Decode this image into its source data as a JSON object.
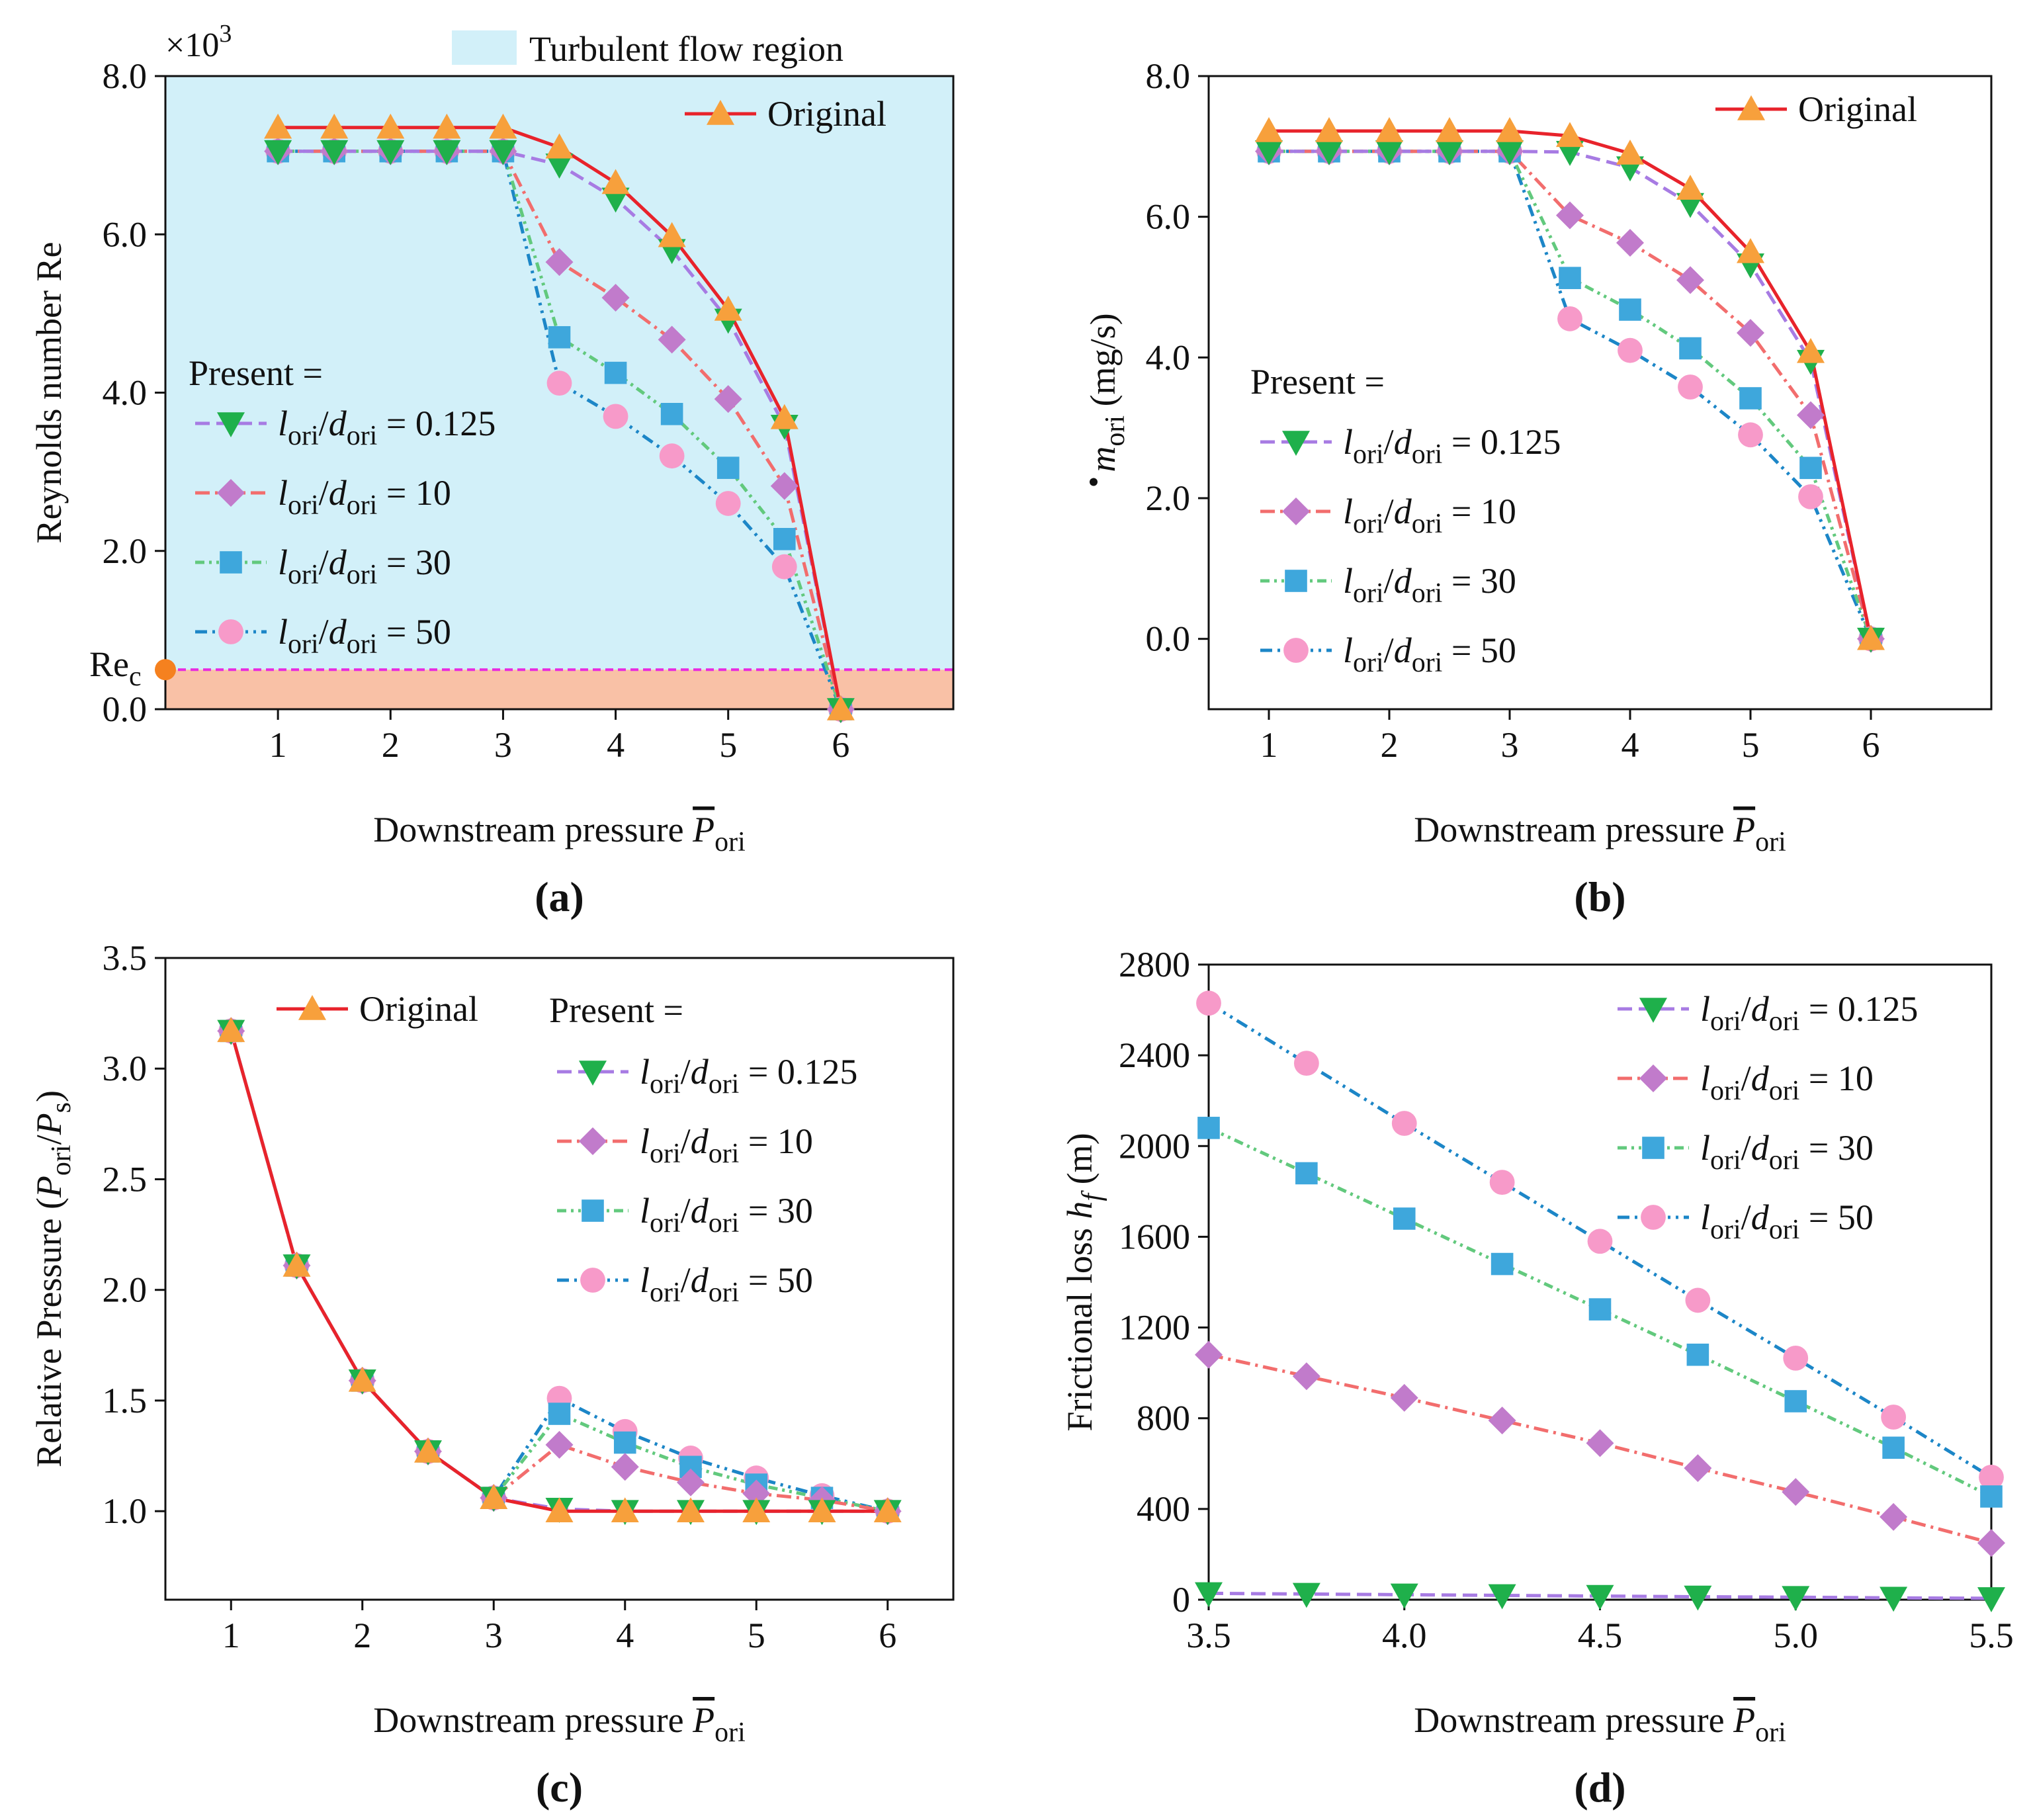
{
  "chart_data": [
    {
      "id": "a",
      "type": "line",
      "panel_label": "(a)",
      "xlabel": "Downstream pressure ",
      "xlabel_symbol": "P",
      "xlabel_sub": "ori",
      "ylabel": "Reynolds number Re",
      "xlim": [
        0,
        7
      ],
      "ylim": [
        0,
        8.0
      ],
      "xticks": [
        1,
        2,
        3,
        4,
        5,
        6
      ],
      "xtick_labels": [
        "1",
        "2",
        "3",
        "4",
        "5",
        "6"
      ],
      "yticks": [
        0,
        2,
        4,
        6,
        8
      ],
      "ytick_labels": [
        "0.0",
        "2.0",
        "4.0",
        "6.0",
        "8.0"
      ],
      "multiplier_base": "×10",
      "multiplier_exp": "3",
      "regions": {
        "turbulent_label": "Turbulent flow region",
        "critical_value": 0.5,
        "critical_label": "Re",
        "critical_sub": "c"
      },
      "x": [
        1,
        1.5,
        2,
        2.5,
        3,
        3.5,
        4,
        4.5,
        5,
        5.5,
        6
      ],
      "series": [
        {
          "name": "Original",
          "key": "original",
          "values": [
            7.35,
            7.35,
            7.35,
            7.35,
            7.35,
            7.1,
            6.65,
            5.98,
            5.05,
            3.68,
            0
          ]
        },
        {
          "name": "l_ori/d_ori = 0.125",
          "key": "r0125",
          "values": [
            7.05,
            7.05,
            7.05,
            7.05,
            7.05,
            6.88,
            6.45,
            5.8,
            4.92,
            3.58,
            0
          ]
        },
        {
          "name": "l_ori/d_ori = 10",
          "key": "r10",
          "values": [
            7.05,
            7.05,
            7.05,
            7.05,
            7.05,
            5.65,
            5.2,
            4.67,
            3.92,
            2.82,
            0
          ]
        },
        {
          "name": "l_ori/d_ori = 30",
          "key": "r30",
          "values": [
            7.05,
            7.05,
            7.05,
            7.05,
            7.05,
            4.7,
            4.25,
            3.73,
            3.05,
            2.15,
            0
          ]
        },
        {
          "name": "l_ori/d_ori = 50",
          "key": "r50",
          "values": [
            7.05,
            7.05,
            7.05,
            7.05,
            7.05,
            4.12,
            3.7,
            3.2,
            2.6,
            1.8,
            0
          ]
        }
      ],
      "legend": {
        "present_label": "Present =",
        "original_label": "Original",
        "ratio_values": [
          "0.125",
          "10",
          "30",
          "50"
        ]
      }
    },
    {
      "id": "b",
      "type": "line",
      "panel_label": "(b)",
      "xlabel": "Downstream pressure ",
      "xlabel_symbol": "P",
      "xlabel_sub": "ori",
      "ylabel_symbol": "m",
      "ylabel_sub": "ori",
      "ylabel_unit": "(mg/s)",
      "xlim": [
        0.5,
        7
      ],
      "ylim": [
        -1,
        8.0
      ],
      "xticks": [
        1,
        2,
        3,
        4,
        5,
        6
      ],
      "xtick_labels": [
        "1",
        "2",
        "3",
        "4",
        "5",
        "6"
      ],
      "yticks": [
        0,
        2,
        4,
        6,
        8
      ],
      "ytick_labels": [
        "0.0",
        "2.0",
        "4.0",
        "6.0",
        "8.0"
      ],
      "x": [
        1,
        1.5,
        2,
        2.5,
        3,
        3.5,
        4,
        4.5,
        5,
        5.5,
        6
      ],
      "series": [
        {
          "name": "Original",
          "key": "original",
          "values": [
            7.22,
            7.22,
            7.22,
            7.22,
            7.22,
            7.15,
            6.9,
            6.4,
            5.5,
            4.08,
            0
          ]
        },
        {
          "name": "l_ori/d_ori = 0.125",
          "key": "r0125",
          "values": [
            6.93,
            6.93,
            6.93,
            6.93,
            6.93,
            6.92,
            6.7,
            6.18,
            5.32,
            3.95,
            0
          ]
        },
        {
          "name": "l_ori/d_ori = 10",
          "key": "r10",
          "values": [
            6.93,
            6.93,
            6.93,
            6.93,
            6.93,
            6.02,
            5.63,
            5.1,
            4.35,
            3.18,
            0
          ]
        },
        {
          "name": "l_ori/d_ori = 30",
          "key": "r30",
          "values": [
            6.93,
            6.93,
            6.93,
            6.93,
            6.93,
            5.13,
            4.68,
            4.13,
            3.42,
            2.43,
            0
          ]
        },
        {
          "name": "l_ori/d_ori = 50",
          "key": "r50",
          "values": [
            6.93,
            6.93,
            6.93,
            6.93,
            6.93,
            4.55,
            4.1,
            3.58,
            2.9,
            2.02,
            0
          ]
        }
      ],
      "legend": {
        "present_label": "Present =",
        "original_label": "Original",
        "ratio_values": [
          "0.125",
          "10",
          "30",
          "50"
        ]
      }
    },
    {
      "id": "c",
      "type": "line",
      "panel_label": "(c)",
      "xlabel": "Downstream pressure ",
      "xlabel_symbol": "P",
      "xlabel_sub": "ori",
      "ylabel": "Relative Pressure (",
      "ylabel_sym1": "P",
      "ylabel_sub1": "ori",
      "ylabel_sym2": "P",
      "ylabel_sub2": "s",
      "xlim": [
        0.5,
        6.5
      ],
      "ylim": [
        0.6,
        3.5
      ],
      "xticks": [
        1,
        2,
        3,
        4,
        5,
        6
      ],
      "xtick_labels": [
        "1",
        "2",
        "3",
        "4",
        "5",
        "6"
      ],
      "yticks": [
        1.0,
        1.5,
        2.0,
        2.5,
        3.0,
        3.5
      ],
      "ytick_labels": [
        "1.0",
        "1.5",
        "2.0",
        "2.5",
        "3.0",
        "3.5"
      ],
      "x": [
        1,
        1.5,
        2,
        2.5,
        3,
        3.5,
        4,
        4.5,
        5,
        5.5,
        6
      ],
      "series": [
        {
          "name": "Original",
          "key": "original",
          "values": [
            3.17,
            2.11,
            1.59,
            1.27,
            1.06,
            1.0,
            1.0,
            1.0,
            1.0,
            1.0,
            1.0
          ]
        },
        {
          "name": "l_ori/d_ori = 0.125",
          "key": "r0125",
          "values": [
            3.17,
            2.11,
            1.59,
            1.27,
            1.06,
            1.01,
            1.0,
            1.0,
            1.0,
            1.0,
            1.0
          ]
        },
        {
          "name": "l_ori/d_ori = 10",
          "key": "r10",
          "values": [
            3.17,
            2.11,
            1.59,
            1.27,
            1.06,
            1.3,
            1.2,
            1.13,
            1.08,
            1.05,
            1.0
          ]
        },
        {
          "name": "l_ori/d_ori = 30",
          "key": "r30",
          "values": [
            3.17,
            2.11,
            1.59,
            1.27,
            1.06,
            1.44,
            1.31,
            1.2,
            1.12,
            1.06,
            1.0
          ]
        },
        {
          "name": "l_ori/d_ori = 50",
          "key": "r50",
          "values": [
            3.17,
            2.11,
            1.59,
            1.27,
            1.06,
            1.51,
            1.36,
            1.24,
            1.15,
            1.07,
            1.0
          ]
        }
      ],
      "legend": {
        "present_label": "Present =",
        "original_label": "Original",
        "ratio_values": [
          "0.125",
          "10",
          "30",
          "50"
        ]
      }
    },
    {
      "id": "d",
      "type": "line",
      "panel_label": "(d)",
      "xlabel": "Downstream pressure ",
      "xlabel_symbol": "P",
      "xlabel_sub": "ori",
      "ylabel": "Frictional loss ",
      "ylabel_sym": "h",
      "ylabel_sub": "f",
      "ylabel_unit": " (m)",
      "xlim": [
        3.5,
        5.5
      ],
      "ylim": [
        0,
        2800
      ],
      "xticks": [
        3.5,
        4.0,
        4.5,
        5.0,
        5.5
      ],
      "xtick_labels": [
        "3.5",
        "4.0",
        "4.5",
        "5.0",
        "5.5"
      ],
      "yticks": [
        0,
        400,
        800,
        1200,
        1600,
        2000,
        2400,
        2800
      ],
      "ytick_labels": [
        "0",
        "400",
        "800",
        "1200",
        "1600",
        "2000",
        "2400",
        "2800"
      ],
      "x": [
        3.5,
        3.75,
        4.0,
        4.25,
        4.5,
        4.75,
        5.0,
        5.25,
        5.5
      ],
      "series": [
        {
          "name": "l_ori/d_ori = 0.125",
          "key": "r0125",
          "values": [
            28,
            25,
            22,
            19,
            16,
            13,
            11,
            8,
            6
          ]
        },
        {
          "name": "l_ori/d_ori = 10",
          "key": "r10",
          "values": [
            1080,
            985,
            890,
            790,
            690,
            580,
            475,
            365,
            250
          ]
        },
        {
          "name": "l_ori/d_ori = 30",
          "key": "r30",
          "values": [
            2080,
            1880,
            1680,
            1480,
            1280,
            1080,
            875,
            670,
            455
          ]
        },
        {
          "name": "l_ori/d_ori = 50",
          "key": "r50",
          "values": [
            2630,
            2365,
            2100,
            1840,
            1580,
            1320,
            1065,
            805,
            540
          ]
        }
      ],
      "legend": {
        "ratio_values": [
          "0.125",
          "10",
          "30",
          "50"
        ]
      }
    }
  ],
  "styles": {
    "original": {
      "line": "#e8232b",
      "marker": "#f7a03c",
      "shape": "triangle-up",
      "dash": ""
    },
    "r0125": {
      "line": "#a77be3",
      "marker": "#1fb04b",
      "shape": "triangle-down",
      "dash": "22,10"
    },
    "r10": {
      "line": "#f26d6d",
      "marker": "#c17bcb",
      "shape": "diamond",
      "dash": "22,8,4,8"
    },
    "r30": {
      "line": "#62c97d",
      "marker": "#3ea7dc",
      "shape": "square",
      "dash": "14,7,4,7,4,7"
    },
    "r50": {
      "line": "#1c86c7",
      "marker": "#f79ac9",
      "shape": "circle",
      "dash": "18,8,4,8,4,8"
    },
    "turbulent_fill": "#d2f0f9",
    "laminar_fill": "#f9c1a6",
    "critical_line": "#e82be0",
    "critical_marker": "#f5811f"
  }
}
